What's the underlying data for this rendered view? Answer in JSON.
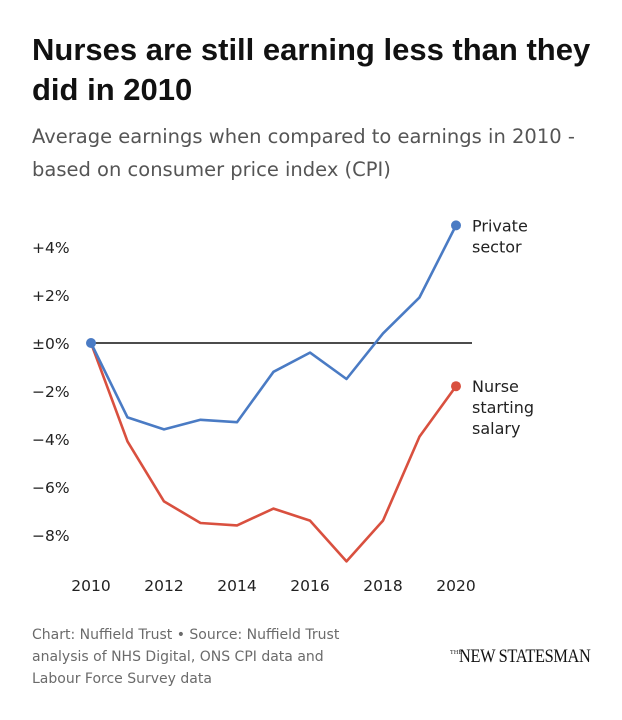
{
  "header": {
    "title": "Nurses are still earning less than they did in 2010",
    "subtitle": "Average earnings when compared to earnings in 2010 - based on consumer price index (CPI)"
  },
  "chart_data": {
    "type": "line",
    "title": "Nurses are still earning less than they did in 2010",
    "subtitle": "Average earnings when compared to earnings in 2010 - based on consumer price index (CPI)",
    "xlabel": "",
    "ylabel": "",
    "x": [
      2010,
      2011,
      2012,
      2013,
      2014,
      2015,
      2016,
      2017,
      2018,
      2019,
      2020
    ],
    "xticks": [
      2010,
      2012,
      2014,
      2016,
      2018,
      2020
    ],
    "xtick_labels": [
      "2010",
      "2012",
      "2014",
      "2016",
      "2018",
      "2020"
    ],
    "yticks": [
      4,
      2,
      0,
      -2,
      -4,
      -6,
      -8
    ],
    "ytick_labels": [
      "+4%",
      "+2%",
      "±0%",
      "−2%",
      "−4%",
      "−6%",
      "−8%"
    ],
    "xlim": [
      2010,
      2020
    ],
    "ylim": [
      -9.2,
      5.0
    ],
    "grid": false,
    "zero_line": true,
    "series": [
      {
        "name": "Private sector",
        "label_lines": [
          "Private",
          "sector"
        ],
        "color": "#4a7bc4",
        "values": [
          0.0,
          -3.1,
          -3.6,
          -3.2,
          -3.3,
          -1.2,
          -0.4,
          -1.5,
          0.4,
          1.9,
          4.9
        ]
      },
      {
        "name": "Nurse starting salary",
        "label_lines": [
          "Nurse",
          "starting",
          "salary"
        ],
        "color": "#d9503f",
        "values": [
          0.0,
          -4.1,
          -6.6,
          -7.5,
          -7.6,
          -6.9,
          -7.4,
          -9.1,
          -7.4,
          -3.9,
          -1.8
        ]
      }
    ]
  },
  "footer": {
    "line1": "Chart: Nuffield Trust • Source: Nuffield Trust",
    "line2": "analysis of NHS Digital, ONS CPI data and",
    "line3": "Labour Force Survey data"
  },
  "logo": {
    "the": "THE",
    "name": "NEW STATESMAN"
  }
}
